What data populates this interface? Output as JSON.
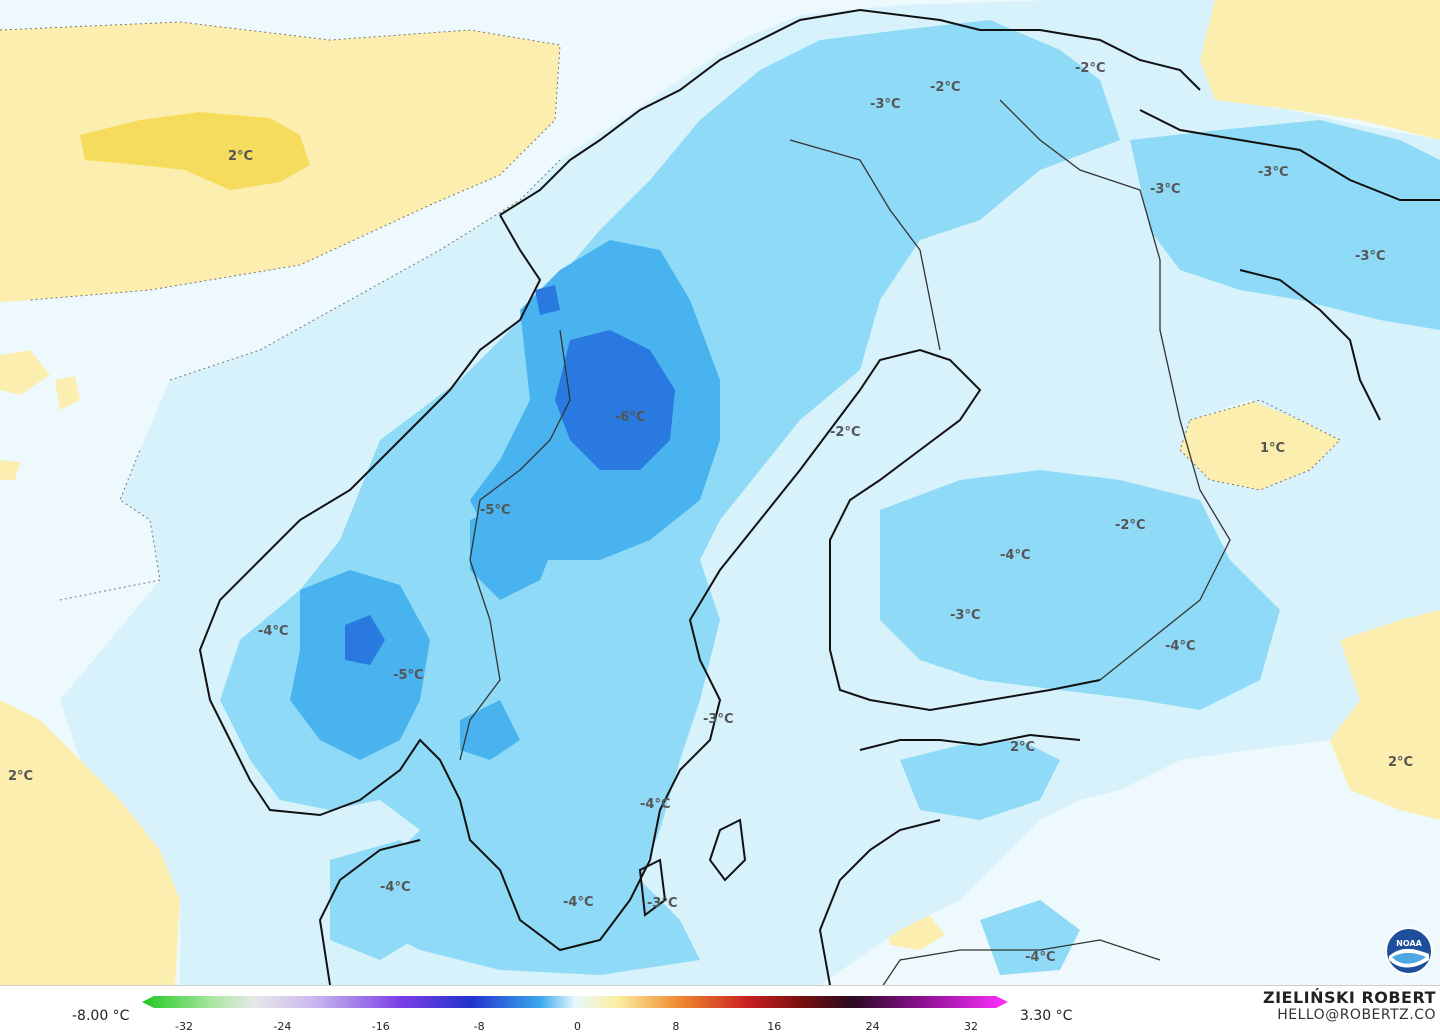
{
  "map": {
    "temperature_labels": [
      {
        "text": "2°C"
      },
      {
        "text": "-3°C"
      },
      {
        "text": "-2°C"
      },
      {
        "text": "-2°C"
      },
      {
        "text": "-3°C"
      },
      {
        "text": "-3°C"
      },
      {
        "text": "-3°C"
      },
      {
        "text": "-6°C"
      },
      {
        "text": "-2°C"
      },
      {
        "text": "1°C"
      },
      {
        "text": "-5°C"
      },
      {
        "text": "-2°C"
      },
      {
        "text": "-4°C"
      },
      {
        "text": "-3°C"
      },
      {
        "text": "-4°C"
      },
      {
        "text": "-4°C"
      },
      {
        "text": "-5°C"
      },
      {
        "text": "-3°C"
      },
      {
        "text": "2°C"
      },
      {
        "text": "2°C"
      },
      {
        "text": "2°C"
      },
      {
        "text": "-4°C"
      },
      {
        "text": "-4°C"
      },
      {
        "text": "-4°C"
      },
      {
        "text": "-3°C"
      },
      {
        "text": "-4°C"
      }
    ]
  },
  "legend": {
    "min_label": "-8.00 °C",
    "max_label": "3.30 °C",
    "ticks": [
      "-32",
      "-24",
      "-16",
      "-8",
      "0",
      "8",
      "16",
      "24",
      "32"
    ]
  },
  "author": {
    "name": "ZIELIŃSKI ROBERT",
    "email": "HELLO@ROBERTZ.CO"
  },
  "logo": {
    "icon": "noaa-logo-icon",
    "text": "NOAA"
  },
  "colors": {
    "land_warm": "#fbeeae",
    "warm_core": "#f6dc5c",
    "cold_light": "#d8f2fc",
    "cold_mid": "#8fdaf6",
    "cold_strong": "#49b3ef",
    "cold_deep": "#2a79e0",
    "coastline": "#111111"
  }
}
